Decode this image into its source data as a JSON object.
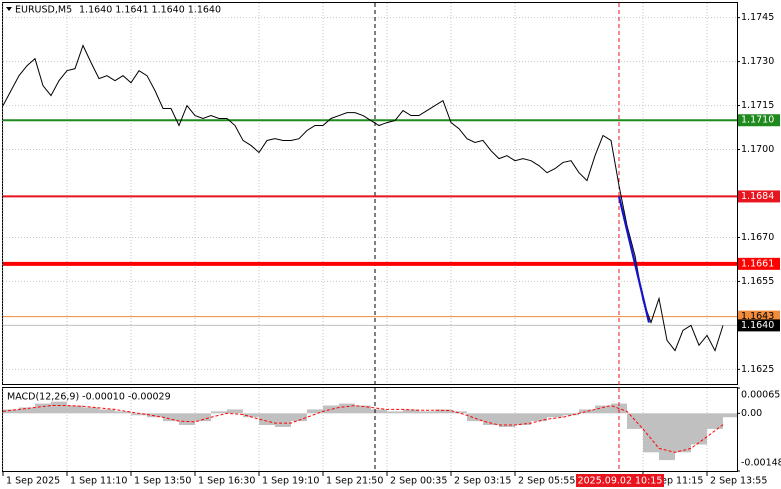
{
  "chart_data": [
    {
      "type": "line",
      "title": "EURUSD,M5",
      "subtitle": "1.1640 1.1641 1.1640 1.1640",
      "color": "#000000",
      "grid": true,
      "xlim": [
        0,
        367
      ],
      "ylim": [
        1.162,
        1.175
      ],
      "yticks": [
        1.1745,
        {
          "value": 1.173,
          "label": "1.1730"
        },
        1.1715,
        {
          "value": 1.17,
          "label": "1.1700"
        },
        {
          "value": 1.167,
          "label": "1.1670"
        },
        1.1655,
        1.1625
      ],
      "xticks": [
        {
          "value": 0,
          "label": "1 Sep 2025"
        },
        {
          "value": 32,
          "label": "1 Sep 11:10"
        },
        {
          "value": 64,
          "label": "1 Sep 13:50"
        },
        {
          "value": 96,
          "label": "1 Sep 16:30"
        },
        {
          "value": 128,
          "label": "1 Sep 19:10"
        },
        {
          "value": 160,
          "label": "1 Sep 21:50"
        },
        {
          "value": 192,
          "label": "2 Sep 00:35"
        },
        {
          "value": 224,
          "label": "2 Sep 03:15"
        },
        {
          "value": 256,
          "label": "2 Sep 05:55"
        },
        {
          "value": 320,
          "label": "2 Sep 11:15"
        },
        {
          "value": 352,
          "label": "2 Sep 13:55"
        }
      ],
      "x": [
        0,
        4,
        8,
        12,
        16,
        20,
        24,
        28,
        32,
        36,
        40,
        44,
        48,
        52,
        56,
        60,
        64,
        68,
        72,
        76,
        80,
        84,
        88,
        92,
        96,
        100,
        104,
        108,
        112,
        116,
        120,
        124,
        128,
        132,
        136,
        140,
        144,
        148,
        152,
        156,
        160,
        164,
        168,
        172,
        176,
        180,
        184,
        188,
        192,
        196,
        200,
        204,
        208,
        212,
        216,
        220,
        224,
        228,
        232,
        236,
        240,
        244,
        248,
        252,
        256,
        260,
        264,
        268,
        272,
        276,
        280,
        284,
        288,
        292,
        296,
        300,
        304,
        308,
        312,
        316,
        320,
        324,
        328,
        332,
        336,
        340,
        344,
        348,
        352,
        356,
        360
      ],
      "values": [
        1.1715,
        1.17201,
        1.17252,
        1.17286,
        1.1731,
        1.17218,
        1.17184,
        1.17235,
        1.17269,
        1.17276,
        1.17355,
        1.17297,
        1.17242,
        1.17252,
        1.17235,
        1.17252,
        1.17228,
        1.17269,
        1.17252,
        1.17201,
        1.1714,
        1.1714,
        1.17082,
        1.1715,
        1.17116,
        1.17106,
        1.17116,
        1.17106,
        1.17106,
        1.17082,
        1.17031,
        1.17014,
        1.1699,
        1.17031,
        1.17037,
        1.17031,
        1.17031,
        1.17037,
        1.17065,
        1.17082,
        1.17082,
        1.17106,
        1.17116,
        1.17126,
        1.17126,
        1.17116,
        1.17099,
        1.17082,
        1.17092,
        1.17099,
        1.17133,
        1.17116,
        1.17116,
        1.17133,
        1.1715,
        1.17167,
        1.17092,
        1.17071,
        1.17037,
        1.17024,
        1.17031,
        1.16996,
        1.16969,
        1.16979,
        1.16962,
        1.16969,
        1.16962,
        1.16945,
        1.16921,
        1.16935,
        1.16956,
        1.16962,
        1.16921,
        1.16894,
        1.16979,
        1.17048,
        1.17031,
        1.16877,
        1.16741,
        1.16638,
        1.16485,
        1.1641,
        1.16492,
        1.16349,
        1.16314,
        1.16383,
        1.164,
        1.16332,
        1.16366,
        1.16314,
        1.164
      ],
      "levels": [
        {
          "value": 1.171,
          "label": "1.1710",
          "color": "#1e8a1e",
          "style": "normal"
        },
        {
          "value": 1.1684,
          "label": "1.1684",
          "color": "#e8141e",
          "style": "normal"
        },
        {
          "value": 1.1661,
          "label": "1.1661",
          "color": "#ff0000",
          "style": "thick"
        },
        {
          "value": 1.1643,
          "label": "1.1643",
          "color": "#f08c3c",
          "style": "thin"
        }
      ],
      "last_price": {
        "value": 1.164,
        "label": "1.1640"
      },
      "trendline": {
        "x": [
          308,
          323
        ],
        "y": [
          1.1684,
          1.1641
        ],
        "color": "#1515c8"
      },
      "vlines": [
        {
          "x": 186,
          "color": "#000000"
        },
        {
          "x": 308,
          "color": "#e8141e",
          "label": "2025.09.02 10:15"
        }
      ]
    },
    {
      "type": "macd",
      "title": "MACD(12,26,9) -0.00010 -0.00029",
      "xlim": [
        0,
        367
      ],
      "ylim": [
        -0.00148,
        0.00065
      ],
      "yticks": [
        0.00065,
        {
          "value": 0,
          "label": "0.00"
        },
        -0.00148
      ],
      "x": [
        0,
        8,
        16,
        24,
        32,
        40,
        48,
        56,
        64,
        72,
        80,
        88,
        96,
        104,
        112,
        120,
        128,
        136,
        144,
        152,
        160,
        168,
        176,
        184,
        192,
        200,
        208,
        216,
        224,
        232,
        240,
        248,
        256,
        264,
        272,
        280,
        288,
        296,
        304,
        312,
        320,
        328,
        336,
        344,
        352,
        360
      ],
      "series": [
        {
          "type": "histogram",
          "color": "#c0c0c0",
          "values": [
            0.0001,
            0.00015,
            0.00025,
            0.0003,
            0.0002,
            0.00015,
            0.0001,
            5e-05,
            -5e-05,
            -0.0001,
            -0.0002,
            -0.0003,
            -0.0002,
            5e-05,
            0.0001,
            -0.0001,
            -0.0003,
            -0.00035,
            -0.0002,
            0.0001,
            0.0002,
            0.00025,
            0.0002,
            0.0001,
            5e-05,
            0.0001,
            5e-05,
            0.0001,
            5e-05,
            -0.0002,
            -0.0003,
            -0.00035,
            -0.0003,
            -0.0002,
            -0.0001,
            -5e-05,
            0.0001,
            0.0002,
            0.00025,
            -0.0004,
            -0.001,
            -0.0012,
            -0.001,
            -0.0008,
            -0.0004,
            -0.0001
          ]
        },
        {
          "type": "line",
          "color": "#ff0000",
          "values": [
            5e-05,
            0.0001,
            0.00015,
            0.0002,
            0.0002,
            0.00018,
            0.00014,
            0.0001,
            3e-05,
            -3e-05,
            -0.0001,
            -0.0002,
            -0.00022,
            -0.0001,
            0,
            -3e-05,
            -0.00015,
            -0.00025,
            -0.00025,
            -0.0001,
            5e-05,
            0.00015,
            0.0002,
            0.00015,
            0.0001,
            0.0001,
            8e-05,
            8e-05,
            7e-05,
            -5e-05,
            -0.0002,
            -0.0003,
            -0.0003,
            -0.00025,
            -0.00015,
            -0.0001,
            0,
            0.0001,
            0.0002,
            5e-05,
            -0.0004,
            -0.0009,
            -0.001,
            -0.0009,
            -0.0006,
            -0.00029
          ]
        }
      ]
    }
  ]
}
